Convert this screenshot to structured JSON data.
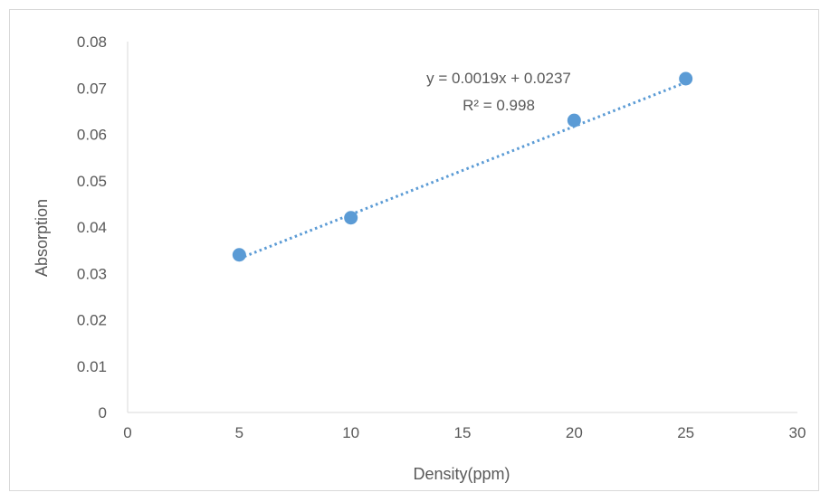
{
  "chart_data": {
    "type": "scatter",
    "title": "",
    "xlabel": "Density(ppm)",
    "ylabel": "Absorption",
    "xlim": [
      0,
      30
    ],
    "ylim": [
      0,
      0.08
    ],
    "x_ticks": [
      "0",
      "5",
      "10",
      "15",
      "20",
      "25",
      "30"
    ],
    "y_ticks": [
      "0",
      "0.01",
      "0.02",
      "0.03",
      "0.04",
      "0.05",
      "0.06",
      "0.07",
      "0.08"
    ],
    "grid": false,
    "legend": "none",
    "series": [
      {
        "x": [
          5,
          10,
          20,
          25
        ],
        "y": [
          0.034,
          0.042,
          0.063,
          0.072
        ],
        "color": "#5b9bd5"
      }
    ],
    "trendline": {
      "type": "linear",
      "style": "dotted",
      "color": "#5b9bd5",
      "slope": 0.0019,
      "intercept": 0.0237,
      "x_range": [
        5,
        25
      ]
    },
    "annotations": {
      "equation": "y = 0.0019x + 0.0237",
      "r_squared": "R² = 0.998"
    },
    "axis_color": "#d9d9d9",
    "text_color": "#595959"
  }
}
